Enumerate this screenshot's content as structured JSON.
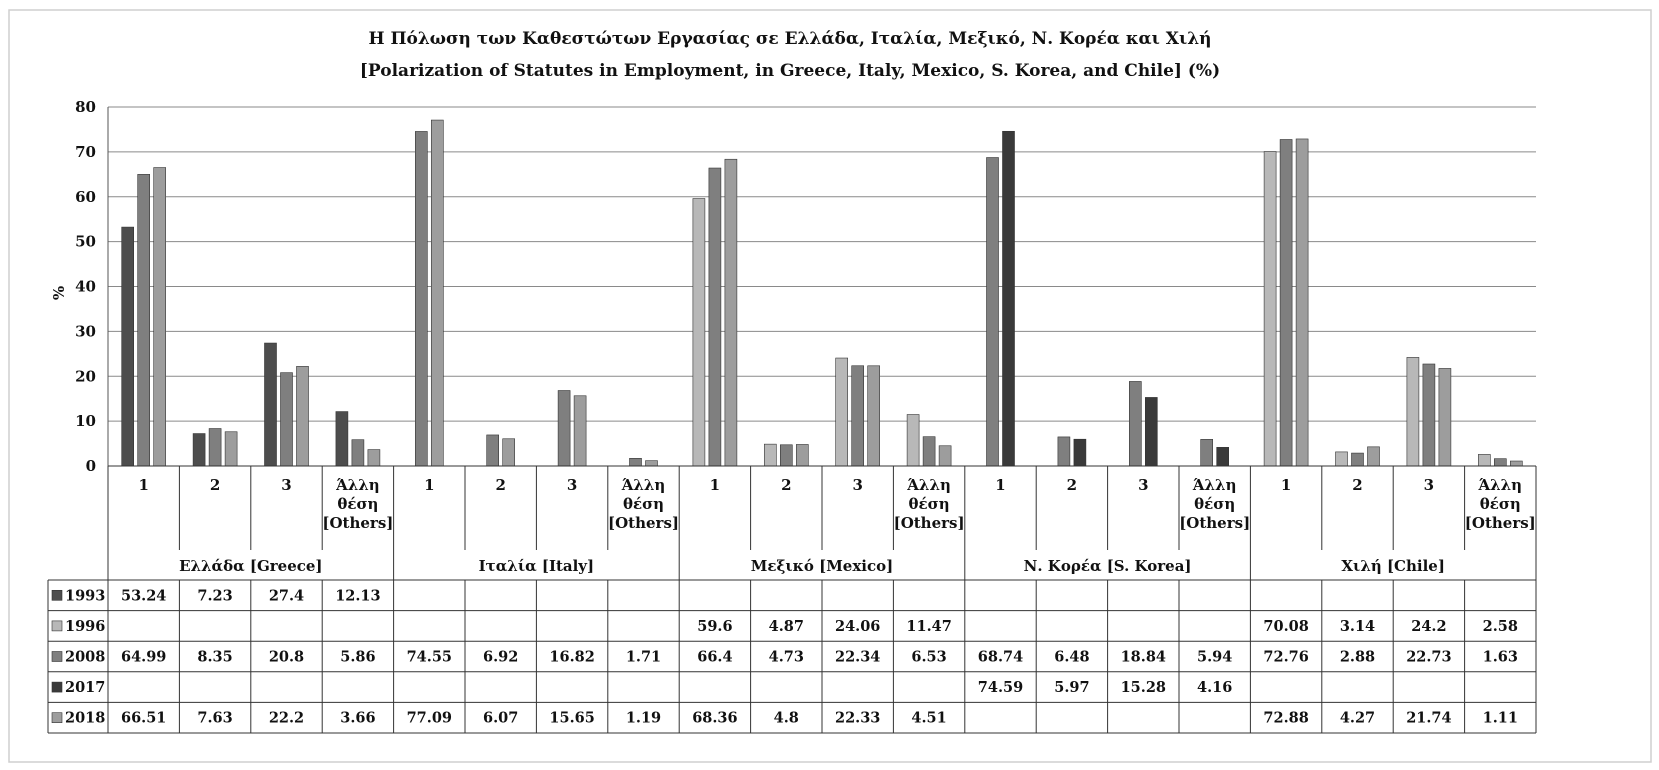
{
  "colors": {
    "series": {
      "1993": "#4d4d4d",
      "1996": "#b8b8b8",
      "2008": "#7f7f7f",
      "2017": "#3a3a3a",
      "2018": "#9d9d9d"
    },
    "grid": "#8a8a8a",
    "frame": "#cfcfcf",
    "table_border": "#333333"
  },
  "chart_data": {
    "type": "bar",
    "title": "Η Πόλωση των Καθεστώτων Εργασίας σε Ελλάδα, Ιταλία, Μεξικό, Ν. Κορέα και Χιλή",
    "subtitle": "[Polarization of Statutes in Employment, in Greece, Italy, Mexico, S. Korea, and Chile] (%)",
    "xlabel": "",
    "ylabel": "%",
    "ylim": [
      0,
      80
    ],
    "yticks": [
      0,
      10,
      20,
      30,
      40,
      50,
      60,
      70,
      80
    ],
    "grid": true,
    "legend": "data table below chart",
    "groups": [
      {
        "label": "Ελλάδα [Greece]",
        "categories": [
          "1",
          "2",
          "3",
          "Άλλη θέση [Others]"
        ]
      },
      {
        "label": "Ιταλία [Italy]",
        "categories": [
          "1",
          "2",
          "3",
          "Άλλη θέση [Others]"
        ]
      },
      {
        "label": "Μεξικό [Mexico]",
        "categories": [
          "1",
          "2",
          "3",
          "Άλλη θέση [Others]"
        ]
      },
      {
        "label": "Ν. Κορέα [S. Korea]",
        "categories": [
          "1",
          "2",
          "3",
          "Άλλη θέση [Others]"
        ]
      },
      {
        "label": "Χιλή [Chile]",
        "categories": [
          "1",
          "2",
          "3",
          "Άλλη θέση [Others]"
        ]
      }
    ],
    "series": [
      {
        "name": "1993",
        "values": [
          53.24,
          7.23,
          27.4,
          12.13,
          null,
          null,
          null,
          null,
          null,
          null,
          null,
          null,
          null,
          null,
          null,
          null,
          null,
          null,
          null,
          null
        ]
      },
      {
        "name": "1996",
        "values": [
          null,
          null,
          null,
          null,
          null,
          null,
          null,
          null,
          59.6,
          4.87,
          24.06,
          11.47,
          null,
          null,
          null,
          null,
          70.08,
          3.14,
          24.2,
          2.58
        ]
      },
      {
        "name": "2008",
        "values": [
          64.99,
          8.35,
          20.8,
          5.86,
          74.55,
          6.92,
          16.82,
          1.71,
          66.4,
          4.73,
          22.34,
          6.53,
          68.74,
          6.48,
          18.84,
          5.94,
          72.76,
          2.88,
          22.73,
          1.63
        ]
      },
      {
        "name": "2017",
        "values": [
          null,
          null,
          null,
          null,
          null,
          null,
          null,
          null,
          null,
          null,
          null,
          null,
          74.59,
          5.97,
          15.28,
          4.16,
          null,
          null,
          null,
          null
        ]
      },
      {
        "name": "2018",
        "values": [
          66.51,
          7.63,
          22.2,
          3.66,
          77.09,
          6.07,
          15.65,
          1.19,
          68.36,
          4.8,
          22.33,
          4.51,
          null,
          null,
          null,
          null,
          72.88,
          4.27,
          21.74,
          1.11
        ]
      }
    ]
  }
}
